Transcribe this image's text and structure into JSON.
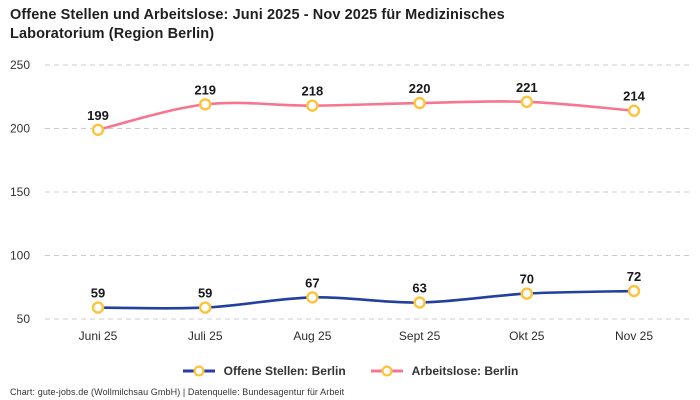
{
  "header": {
    "title": "Offene Stellen und Arbeitslose: Juni 2025 - Nov 2025 für Medizinisches Laboratorium (Region Berlin)"
  },
  "chart_data": {
    "type": "line",
    "title": "Offene Stellen und Arbeitslose: Juni 2025 - Nov 2025 für Medizinisches Laboratorium (Region Berlin)",
    "categories": [
      "Juni 25",
      "Juli 25",
      "Aug 25",
      "Sept 25",
      "Okt 25",
      "Nov 25"
    ],
    "series": [
      {
        "name": "Offene Stellen: Berlin",
        "values": [
          59,
          59,
          67,
          63,
          70,
          72
        ],
        "color": "#23409f"
      },
      {
        "name": "Arbeitslose: Berlin",
        "values": [
          199,
          219,
          218,
          220,
          221,
          214
        ],
        "color": "#f7758f"
      }
    ],
    "marker": {
      "fill": "#ffffff",
      "stroke": "#fdc33c"
    },
    "yticks": [
      250,
      200,
      150,
      100,
      50
    ],
    "ylim": [
      50,
      250
    ],
    "grid": "dashed horizontal",
    "gridline_color": "#cccccc",
    "legend_position": "bottom",
    "xlabel": "",
    "ylabel": ""
  },
  "footer": {
    "credit": "Chart: gute-jobs.de (Wollmilchsau GmbH) | Datenquelle: Bundesagentur für Arbeit"
  }
}
